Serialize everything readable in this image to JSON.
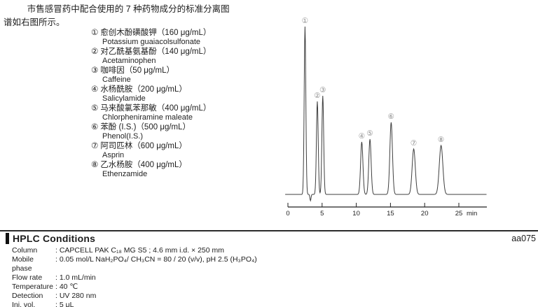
{
  "intro": {
    "line1": "市售感冒药中配合使用的 7 种药物成分的标准分离图",
    "line2": "谱如右图所示。"
  },
  "legend": {
    "items": [
      {
        "num": "①",
        "name_cn": "愈创木酚磺酸钾",
        "conc": "（160 μg/mL）",
        "name_en": "Potassium guaiacolsulfonate"
      },
      {
        "num": "②",
        "name_cn": "对乙酰基氨基酚",
        "conc": "（140 μg/mL）",
        "name_en": "Acetaminophen"
      },
      {
        "num": "③",
        "name_cn": "咖啡因",
        "conc": "（50 μg/mL）",
        "name_en": "Caffeine"
      },
      {
        "num": "④",
        "name_cn": "水杨酰胺",
        "conc": "（200 μg/mL）",
        "name_en": "Salicylamide"
      },
      {
        "num": "⑤",
        "name_cn": "马来酸氯苯那敏",
        "conc": "（400 μg/mL）",
        "name_en": "Chlorpheniramine maleate"
      },
      {
        "num": "⑥",
        "name_cn": "苯酚 (I.S.)",
        "conc": "（500 μg/mL）",
        "name_en": "Phenol(I.S.)"
      },
      {
        "num": "⑦",
        "name_cn": "阿司匹林",
        "conc": "（600 μg/mL）",
        "name_en": "Asprin"
      },
      {
        "num": "⑧",
        "name_cn": "乙水杨胺",
        "conc": "（400 μg/mL）",
        "name_en": "Ethenzamide"
      }
    ]
  },
  "chart_data": {
    "type": "line",
    "title": "",
    "xlabel": "min",
    "x_ticks": [
      0,
      5,
      10,
      15,
      20,
      25
    ],
    "x_range": [
      0,
      29.1
    ],
    "grid": false,
    "line_color": "#3f3f3f",
    "peak_label_color": "#8f8f8f",
    "peaks": [
      {
        "label": "①",
        "time_min": 2.5,
        "rel_height": 240,
        "sigma_min": 0.12
      },
      {
        "label": "②",
        "time_min": 4.3,
        "rel_height": 133,
        "sigma_min": 0.13
      },
      {
        "label": "③",
        "time_min": 5.1,
        "rel_height": 141,
        "sigma_min": 0.13
      },
      {
        "label": "④",
        "time_min": 10.8,
        "rel_height": 75,
        "sigma_min": 0.17
      },
      {
        "label": "⑤",
        "time_min": 12.0,
        "rel_height": 79,
        "sigma_min": 0.17
      },
      {
        "label": "⑥",
        "time_min": 15.1,
        "rel_height": 103,
        "sigma_min": 0.19
      },
      {
        "label": "⑦",
        "time_min": 18.4,
        "rel_height": 65,
        "sigma_min": 0.23
      },
      {
        "label": "⑧",
        "time_min": 22.4,
        "rel_height": 70,
        "sigma_min": 0.26
      }
    ],
    "negative_dip": {
      "time_min": 3.3,
      "depth": 9,
      "sigma_min": 0.08
    }
  },
  "conditions": {
    "title": "HPLC Conditions",
    "code": "aa075",
    "rows": [
      {
        "label": "Column",
        "value": ": CAPCELL PAK C₁₈ MG S5 ; 4.6 mm i.d. × 250 mm"
      },
      {
        "label": "Mobile phase",
        "value": ": 0.05 mol/L NaH₂PO₄/ CH₃CN = 80 / 20 (v/v), pH 2.5 (H₃PO₄)"
      },
      {
        "label": "Flow rate",
        "value": ": 1.0 mL/min"
      },
      {
        "label": "Temperature",
        "value": ": 40 ℃"
      },
      {
        "label": "Detection",
        "value": ": UV 280 nm"
      },
      {
        "label": "Inj. vol.",
        "value": ": 5 μL"
      }
    ]
  }
}
